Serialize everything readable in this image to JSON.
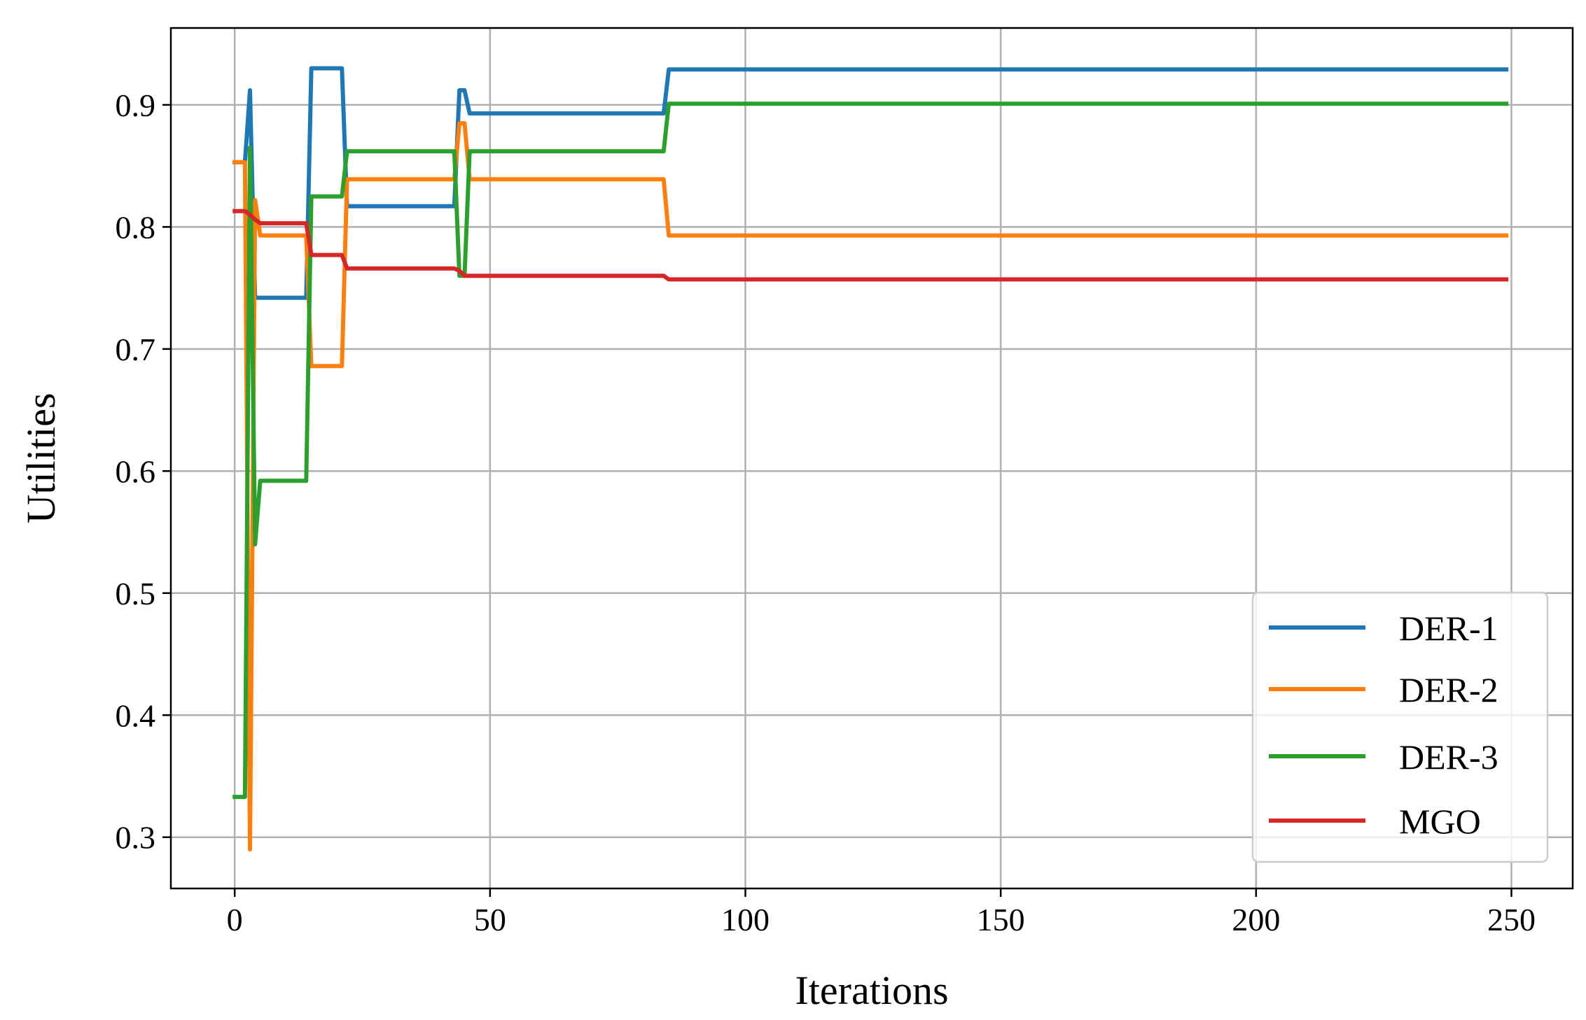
{
  "chart_data": {
    "type": "line",
    "title": "",
    "xlabel": "Iterations",
    "ylabel": "Utilities",
    "xlim": [
      -12.5,
      262
    ],
    "ylim": [
      0.258,
      0.963
    ],
    "xticks": [
      0,
      50,
      100,
      150,
      200,
      250
    ],
    "xtick_labels": [
      "0",
      "50",
      "100",
      "150",
      "200",
      "250"
    ],
    "yticks": [
      0.3,
      0.4,
      0.5,
      0.6,
      0.7,
      0.8,
      0.9
    ],
    "ytick_labels": [
      "0.3",
      "0.4",
      "0.5",
      "0.6",
      "0.7",
      "0.8",
      "0.9"
    ],
    "grid": true,
    "legend_position": "lower-right",
    "series": [
      {
        "name": "DER-1",
        "color": "#1f77b4",
        "points": [
          [
            0,
            0.853
          ],
          [
            1,
            0.853
          ],
          [
            2,
            0.853
          ],
          [
            3,
            0.912
          ],
          [
            4,
            0.742
          ],
          [
            5,
            0.742
          ],
          [
            14,
            0.742
          ],
          [
            15,
            0.93
          ],
          [
            21,
            0.93
          ],
          [
            22,
            0.817
          ],
          [
            43,
            0.817
          ],
          [
            44,
            0.912
          ],
          [
            45,
            0.912
          ],
          [
            46,
            0.893
          ],
          [
            84,
            0.893
          ],
          [
            85,
            0.929
          ],
          [
            249,
            0.929
          ]
        ]
      },
      {
        "name": "DER-2",
        "color": "#ff7f0e",
        "points": [
          [
            0,
            0.853
          ],
          [
            1,
            0.853
          ],
          [
            2,
            0.853
          ],
          [
            3,
            0.29
          ],
          [
            4,
            0.822
          ],
          [
            5,
            0.793
          ],
          [
            14,
            0.793
          ],
          [
            15,
            0.686
          ],
          [
            21,
            0.686
          ],
          [
            22,
            0.839
          ],
          [
            43,
            0.839
          ],
          [
            44,
            0.885
          ],
          [
            45,
            0.885
          ],
          [
            46,
            0.839
          ],
          [
            84,
            0.839
          ],
          [
            85,
            0.793
          ],
          [
            249,
            0.793
          ]
        ]
      },
      {
        "name": "DER-3",
        "color": "#2ca02c",
        "points": [
          [
            0,
            0.333
          ],
          [
            1,
            0.333
          ],
          [
            2,
            0.333
          ],
          [
            3,
            0.865
          ],
          [
            4,
            0.54
          ],
          [
            5,
            0.592
          ],
          [
            14,
            0.592
          ],
          [
            15,
            0.825
          ],
          [
            21,
            0.825
          ],
          [
            22,
            0.862
          ],
          [
            43,
            0.862
          ],
          [
            44,
            0.76
          ],
          [
            45,
            0.76
          ],
          [
            46,
            0.862
          ],
          [
            84,
            0.862
          ],
          [
            85,
            0.901
          ],
          [
            249,
            0.901
          ]
        ]
      },
      {
        "name": "MGO",
        "color": "#d62728",
        "points": [
          [
            0,
            0.813
          ],
          [
            1,
            0.813
          ],
          [
            2,
            0.813
          ],
          [
            3,
            0.81
          ],
          [
            4,
            0.806
          ],
          [
            5,
            0.803
          ],
          [
            14,
            0.803
          ],
          [
            15,
            0.777
          ],
          [
            21,
            0.777
          ],
          [
            22,
            0.766
          ],
          [
            43,
            0.766
          ],
          [
            44,
            0.764
          ],
          [
            45,
            0.76
          ],
          [
            84,
            0.76
          ],
          [
            85,
            0.757
          ],
          [
            249,
            0.757
          ]
        ]
      }
    ]
  }
}
